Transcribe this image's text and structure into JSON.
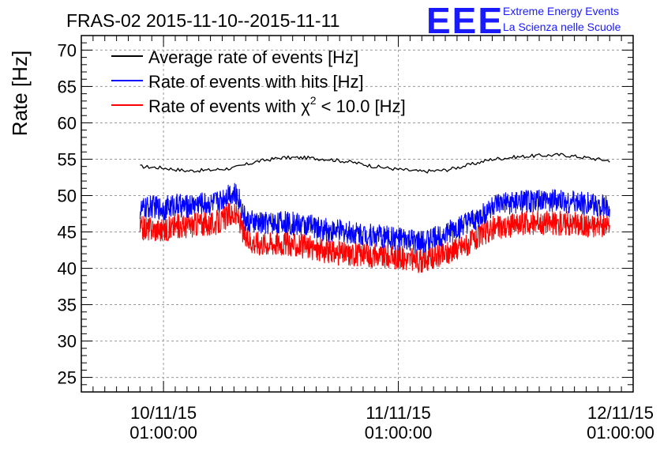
{
  "chart_data": {
    "type": "line",
    "title": "FRAS-02 2015-11-10--2015-11-11",
    "xlabel": "",
    "ylabel": "Rate [Hz]",
    "ylim": [
      23,
      72
    ],
    "yticks": [
      25,
      30,
      35,
      40,
      45,
      50,
      55,
      60,
      65,
      70
    ],
    "xlim": [
      -0.35,
      2.0
    ],
    "xtick_positions": [
      0,
      1,
      2
    ],
    "xtick_labels": [
      {
        "date": "10/11/15",
        "time": "01:00:00"
      },
      {
        "date": "11/11/15",
        "time": "01:00:00"
      },
      {
        "date": "12/11/15",
        "time": "01:00:00"
      }
    ],
    "grid": true,
    "legend_position": "top-left",
    "series": [
      {
        "name": "Average rate of events [Hz]",
        "color": "#000000",
        "x": [
          -0.1,
          0.0,
          0.1,
          0.2,
          0.3,
          0.4,
          0.5,
          0.6,
          0.7,
          0.8,
          0.9,
          1.0,
          1.1,
          1.2,
          1.3,
          1.4,
          1.5,
          1.6,
          1.7,
          1.8,
          1.9
        ],
        "y": [
          54.0,
          53.8,
          53.4,
          53.5,
          53.8,
          54.7,
          55.2,
          55.2,
          55.0,
          54.6,
          54.0,
          53.6,
          53.3,
          53.5,
          54.2,
          55.0,
          55.3,
          55.5,
          55.6,
          55.2,
          54.8
        ]
      },
      {
        "name": "Rate of events with hits [Hz]",
        "color": "#0000ff",
        "x": [
          -0.1,
          -0.05,
          0.0,
          0.05,
          0.1,
          0.15,
          0.2,
          0.25,
          0.28,
          0.32,
          0.35,
          0.4,
          0.5,
          0.6,
          0.7,
          0.8,
          0.9,
          1.0,
          1.1,
          1.15,
          1.2,
          1.3,
          1.35,
          1.4,
          1.5,
          1.6,
          1.7,
          1.8,
          1.9
        ],
        "y": [
          48.0,
          48.5,
          48.2,
          48.7,
          48.5,
          49.0,
          48.8,
          49.5,
          50.5,
          49.8,
          46.5,
          46.2,
          46.3,
          46.0,
          45.2,
          45.0,
          44.5,
          44.0,
          43.5,
          44.2,
          44.8,
          46.2,
          47.0,
          48.6,
          49.0,
          49.3,
          49.2,
          48.9,
          48.5
        ]
      },
      {
        "name": "Rate of events with χ² < 10.0 [Hz]",
        "legend_main": "Rate of events with χ",
        "legend_sup": "2",
        "legend_tail": " < 10.0 [Hz]",
        "color": "#ff0000",
        "x": [
          -0.1,
          -0.05,
          0.0,
          0.05,
          0.1,
          0.15,
          0.2,
          0.25,
          0.28,
          0.32,
          0.35,
          0.4,
          0.5,
          0.6,
          0.7,
          0.8,
          0.9,
          1.0,
          1.1,
          1.15,
          1.2,
          1.3,
          1.35,
          1.4,
          1.5,
          1.6,
          1.7,
          1.8,
          1.9
        ],
        "y": [
          45.5,
          45.5,
          45.2,
          45.8,
          45.8,
          46.2,
          46.0,
          46.5,
          47.5,
          47.0,
          44.0,
          43.5,
          43.5,
          43.0,
          42.2,
          42.0,
          41.8,
          41.5,
          41.0,
          41.5,
          42.0,
          43.5,
          44.5,
          45.5,
          46.0,
          46.3,
          46.2,
          46.0,
          45.7
        ]
      }
    ]
  },
  "logo": {
    "letters": "EEE",
    "line1": "Extreme Energy Events",
    "line2": "La Scienza nelle Scuole"
  }
}
